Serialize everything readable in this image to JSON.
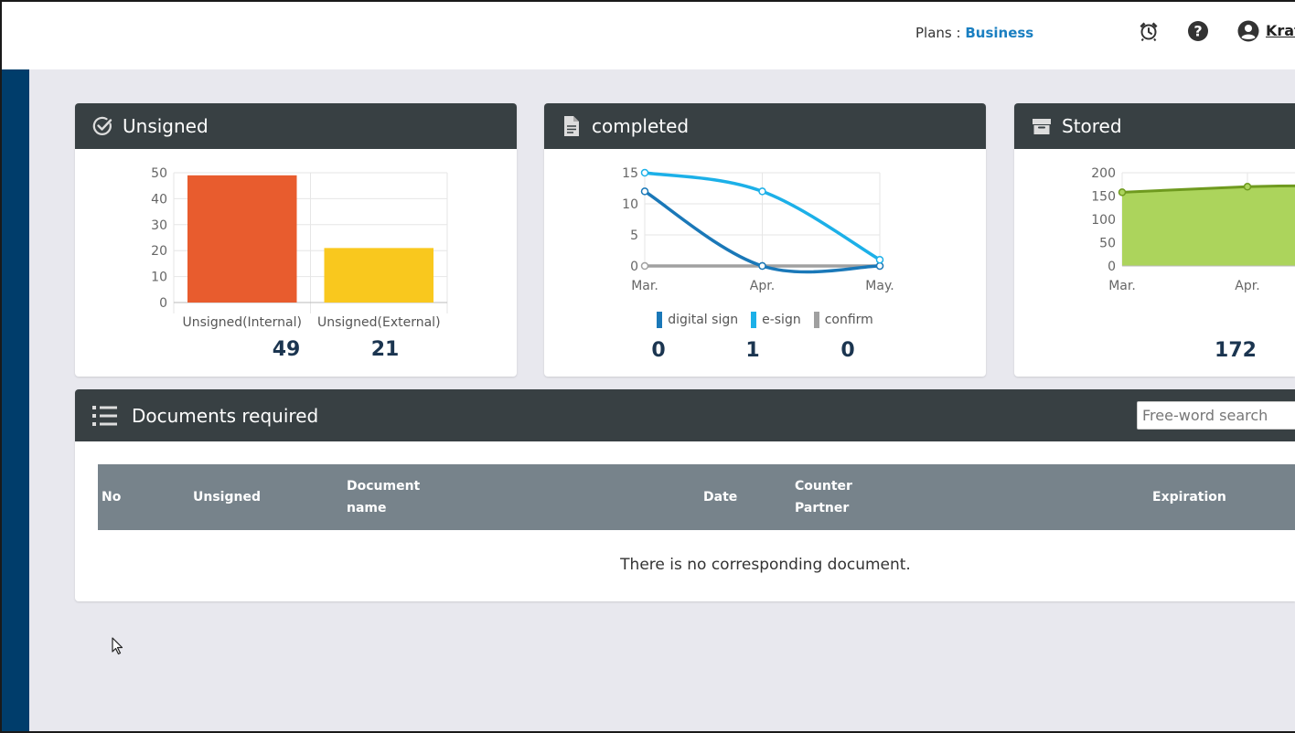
{
  "header": {
    "plans_label": "Plans :",
    "plan_value": "Business",
    "user_name": "Krat",
    "icons": [
      "alarm-clock-icon",
      "help-icon",
      "user-icon"
    ]
  },
  "cards": {
    "unsigned": {
      "title": "Unsigned",
      "icon": "check-circle-icon",
      "chart_data": {
        "type": "bar",
        "categories": [
          "Unsigned(Internal)",
          "Unsigned(External)"
        ],
        "values": [
          49,
          21
        ],
        "colors": [
          "#e85c2e",
          "#f9c81e"
        ],
        "ylim": [
          0,
          50
        ],
        "yticks": [
          "0",
          "10",
          "20",
          "30",
          "40",
          "50"
        ],
        "grid": true
      },
      "totals": [
        "49",
        "21"
      ]
    },
    "completed": {
      "title": "completed",
      "icon": "document-icon",
      "chart_data": {
        "type": "line",
        "x": [
          "Mar.",
          "Apr.",
          "May."
        ],
        "series": [
          {
            "name": "digital sign",
            "values": [
              12,
              0,
              0
            ],
            "color": "#1a78b8"
          },
          {
            "name": "e-sign",
            "values": [
              15,
              12,
              1
            ],
            "color": "#1cb0e8"
          },
          {
            "name": "confirm",
            "values": [
              0,
              0,
              0
            ],
            "color": "#a0a0a0"
          }
        ],
        "ylim": [
          0,
          15
        ],
        "yticks": [
          "0",
          "5",
          "10",
          "15"
        ],
        "grid": true,
        "legend": "bottom"
      },
      "totals": [
        "0",
        "1",
        "0"
      ]
    },
    "stored": {
      "title": "Stored",
      "icon": "archive-box-icon",
      "chart_data": {
        "type": "area",
        "x": [
          "Mar.",
          "Apr."
        ],
        "series": [
          {
            "values": [
              158,
              170
            ],
            "color": "#6f9a1f",
            "fill": "#acd45c"
          }
        ],
        "ylim": [
          0,
          200
        ],
        "yticks": [
          "0",
          "50",
          "100",
          "150",
          "200"
        ],
        "grid": true
      },
      "total": "172"
    }
  },
  "documents": {
    "title": "Documents required",
    "icon": "list-icon",
    "search_placeholder": "Free-word search",
    "columns": {
      "no": "No",
      "unsigned": "Unsigned",
      "document_name_1": "Document",
      "document_name_2": "name",
      "date": "Date",
      "counter_partner_1": "Counter",
      "counter_partner_2": "Partner",
      "expiration": "Expiration"
    },
    "empty_message": "There is no corresponding document."
  }
}
